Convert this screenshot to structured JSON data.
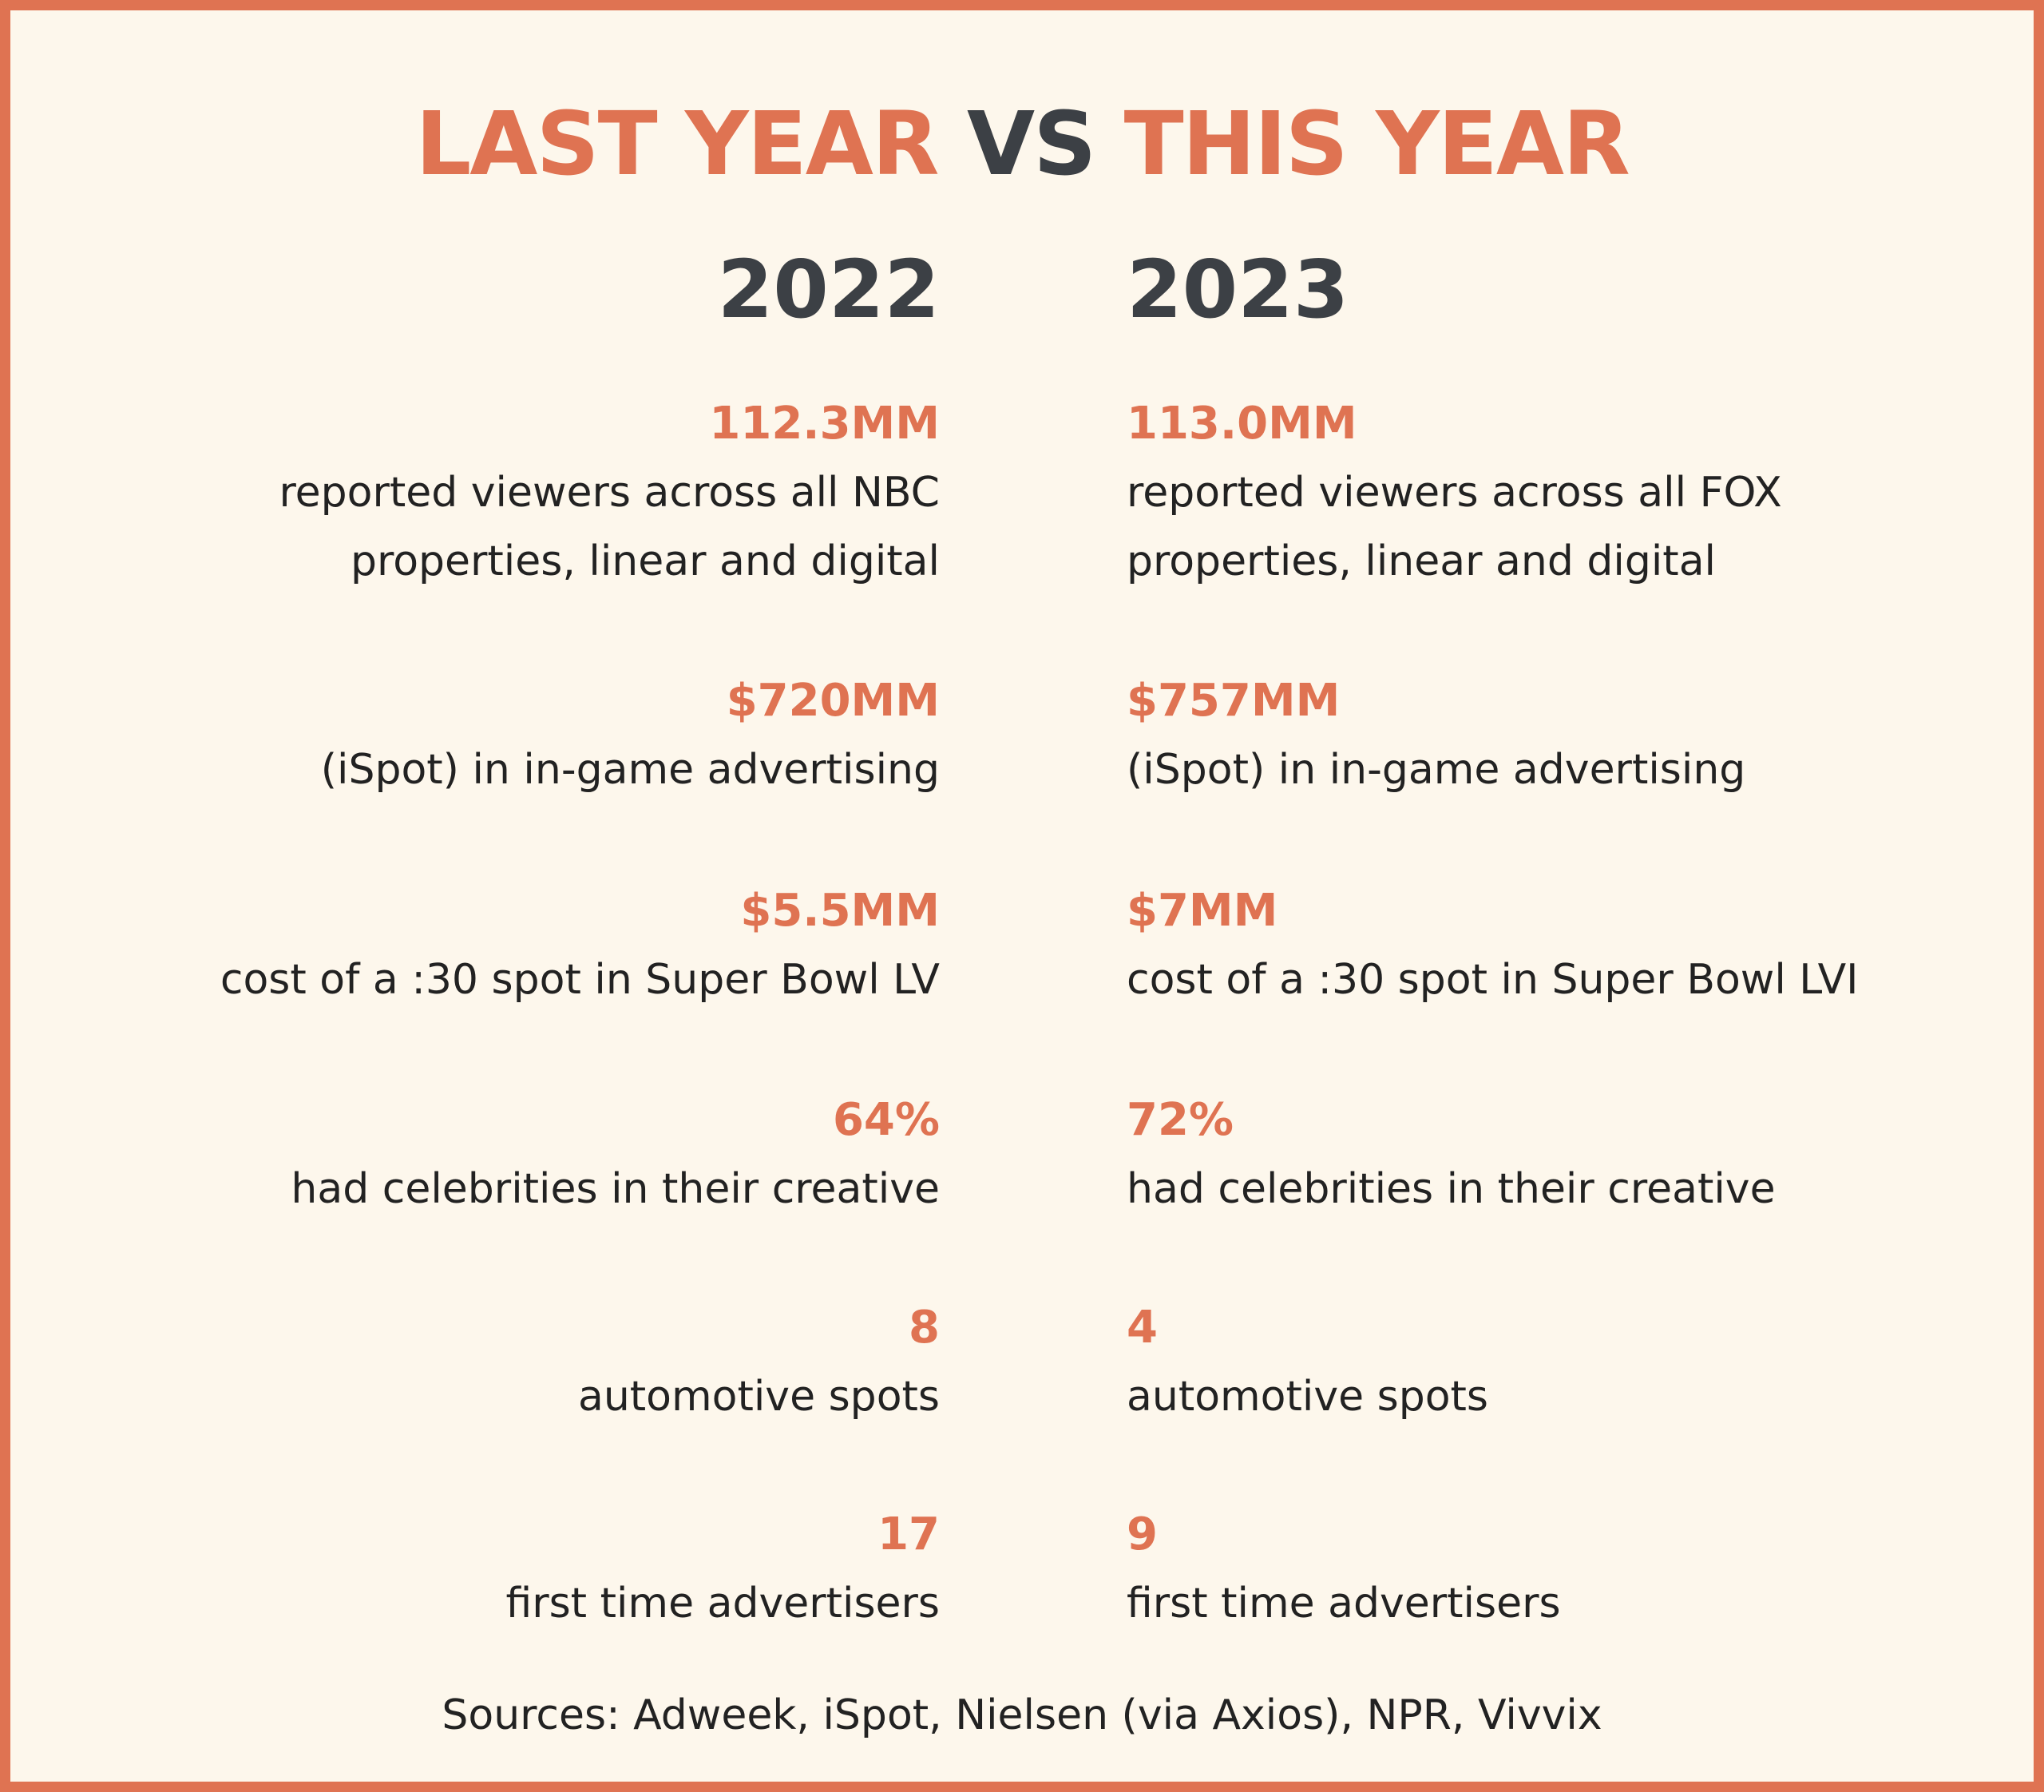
{
  "title": {
    "part1": "LAST YEAR",
    "part2": "VS",
    "part3": "THIS YEAR"
  },
  "columns": [
    {
      "year": "2022",
      "stats": [
        {
          "value": "112.3MM",
          "desc": "reported viewers across all NBC\nproperties, linear and digital"
        },
        {
          "value": "$720MM",
          "desc": "(iSpot) in in-game advertising"
        },
        {
          "value": "$5.5MM",
          "desc": "cost of a :30 spot in Super Bowl LV"
        },
        {
          "value": "64%",
          "desc": "had celebrities in their creative"
        },
        {
          "value": "8",
          "desc": "automotive spots"
        },
        {
          "value": "17",
          "desc": "first time advertisers"
        }
      ]
    },
    {
      "year": "2023",
      "stats": [
        {
          "value": "113.0MM",
          "desc": "reported viewers across all FOX\nproperties, linear and digital"
        },
        {
          "value": "$757MM",
          "desc": "(iSpot) in in-game advertising"
        },
        {
          "value": "$7MM",
          "desc": "cost of a :30 spot in Super Bowl LVI"
        },
        {
          "value": "72%",
          "desc": "had celebrities in their creative"
        },
        {
          "value": "4",
          "desc": "automotive spots"
        },
        {
          "value": "9",
          "desc": "first time advertisers"
        }
      ]
    }
  ],
  "sources": "Sources: Adweek, iSpot, Nielsen (via Axios), NPR, Vivvix",
  "colors": {
    "accent": "#df7352",
    "dark": "#3c4045",
    "background": "#fdf7ec"
  }
}
